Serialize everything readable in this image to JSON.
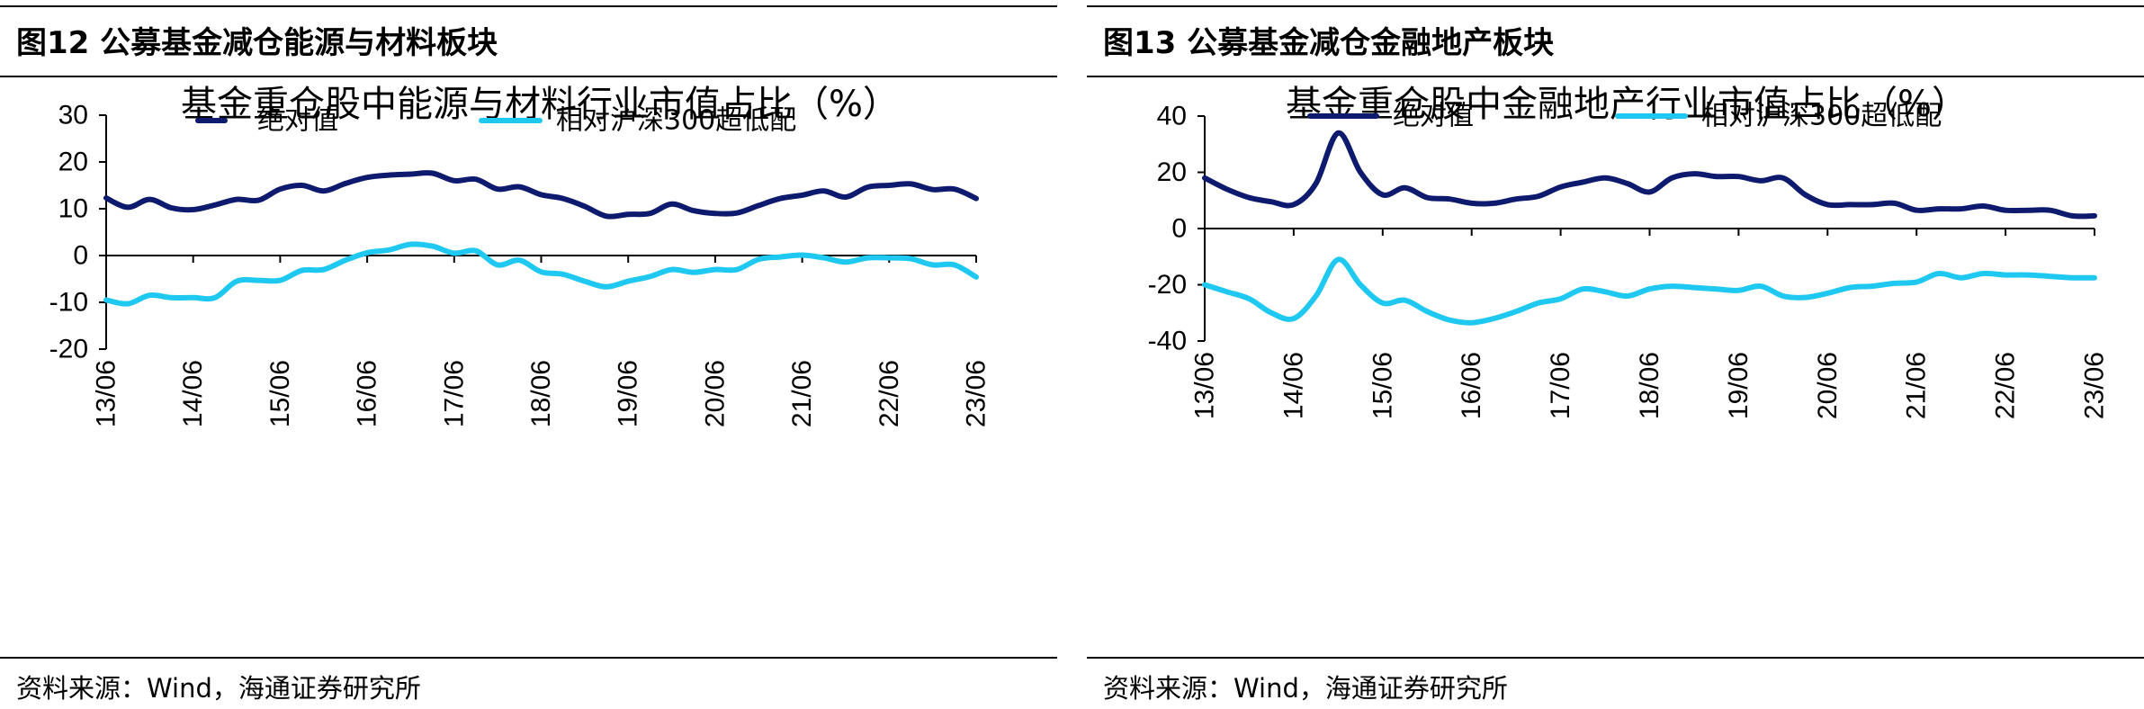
{
  "panels": [
    {
      "figure_title": "图12 公募基金减仓能源与材料板块",
      "source": "资料来源：Wind，海通证券研究所",
      "chart_data": {
        "type": "line",
        "title": "基金重仓股中能源与材料行业市值占比（%）",
        "xlabel": "",
        "ylabel": "",
        "ylim": [
          -20,
          30
        ],
        "yticks": [
          -20,
          -10,
          0,
          10,
          20,
          30
        ],
        "xlim": [
          0,
          40
        ],
        "x_tick_labels": [
          "13/06",
          "14/06",
          "15/06",
          "16/06",
          "17/06",
          "18/06",
          "19/06",
          "20/06",
          "21/06",
          "22/06",
          "23/06"
        ],
        "legend_position": "top",
        "series": [
          {
            "name": "绝对值",
            "color": "#0d1a6e",
            "values": [
              12.3,
              10.3,
              12.0,
              10.2,
              9.8,
              10.8,
              12.0,
              11.8,
              14.2,
              15.0,
              13.8,
              15.4,
              16.7,
              17.2,
              17.4,
              17.6,
              16.0,
              16.3,
              14.2,
              14.7,
              13.0,
              12.2,
              10.5,
              8.4,
              8.8,
              9.0,
              11.0,
              9.6,
              9.0,
              9.1,
              10.7,
              12.2,
              12.9,
              13.8,
              12.5,
              14.6,
              15.0,
              15.3,
              14.1,
              14.2,
              12.2
            ]
          },
          {
            "name": "相对沪深300超低配",
            "color": "#1ec8f0",
            "values": [
              -9.5,
              -10.3,
              -8.5,
              -9.0,
              -9.0,
              -9.0,
              -5.5,
              -5.3,
              -5.3,
              -3.2,
              -3.0,
              -1.0,
              0.6,
              1.2,
              2.4,
              2.0,
              0.5,
              1.0,
              -2.0,
              -1.0,
              -3.5,
              -4.0,
              -5.5,
              -6.7,
              -5.5,
              -4.5,
              -3.0,
              -3.6,
              -3.0,
              -3.0,
              -0.8,
              -0.3,
              0.1,
              -0.5,
              -1.4,
              -0.5,
              -0.5,
              -0.7,
              -2.0,
              -2.0,
              -4.6
            ]
          }
        ]
      }
    },
    {
      "figure_title": "图13 公募基金减仓金融地产板块",
      "source": "资料来源：Wind，海通证券研究所",
      "chart_data": {
        "type": "line",
        "title": "基金重仓股中金融地产行业市值占比（%）",
        "xlabel": "",
        "ylabel": "",
        "ylim": [
          -40,
          40
        ],
        "yticks": [
          -40,
          -20,
          0,
          20,
          40
        ],
        "xlim": [
          0,
          40
        ],
        "x_tick_labels": [
          "13/06",
          "14/06",
          "15/06",
          "16/06",
          "17/06",
          "18/06",
          "19/06",
          "20/06",
          "21/06",
          "22/06",
          "23/06"
        ],
        "legend_position": "top",
        "series": [
          {
            "name": "绝对值",
            "color": "#0d1a6e",
            "values": [
              18.0,
              14.0,
              11.0,
              9.5,
              8.5,
              16.0,
              34.0,
              20.0,
              12.0,
              14.5,
              11.0,
              10.5,
              9.0,
              9.0,
              10.5,
              11.5,
              14.8,
              16.5,
              18.0,
              16.0,
              13.0,
              18.0,
              19.5,
              18.5,
              18.5,
              17.0,
              18.0,
              12.0,
              8.5,
              8.5,
              8.5,
              9.0,
              6.5,
              7.0,
              7.0,
              8.0,
              6.5,
              6.5,
              6.5,
              4.5,
              4.5
            ]
          },
          {
            "name": "相对沪深300超低配",
            "color": "#1ec8f0",
            "values": [
              -20.0,
              -22.5,
              -25.0,
              -30.0,
              -32.0,
              -24.0,
              -11.0,
              -20.0,
              -26.5,
              -25.5,
              -29.5,
              -32.5,
              -33.5,
              -32.0,
              -29.5,
              -26.5,
              -25.0,
              -21.5,
              -22.5,
              -24.0,
              -21.5,
              -20.5,
              -21.0,
              -21.5,
              -22.0,
              -20.5,
              -24.0,
              -24.5,
              -23.0,
              -21.0,
              -20.5,
              -19.5,
              -19.0,
              -16.0,
              -17.5,
              -16.0,
              -16.5,
              -16.5,
              -17.0,
              -17.5,
              -17.5
            ]
          }
        ]
      }
    }
  ]
}
